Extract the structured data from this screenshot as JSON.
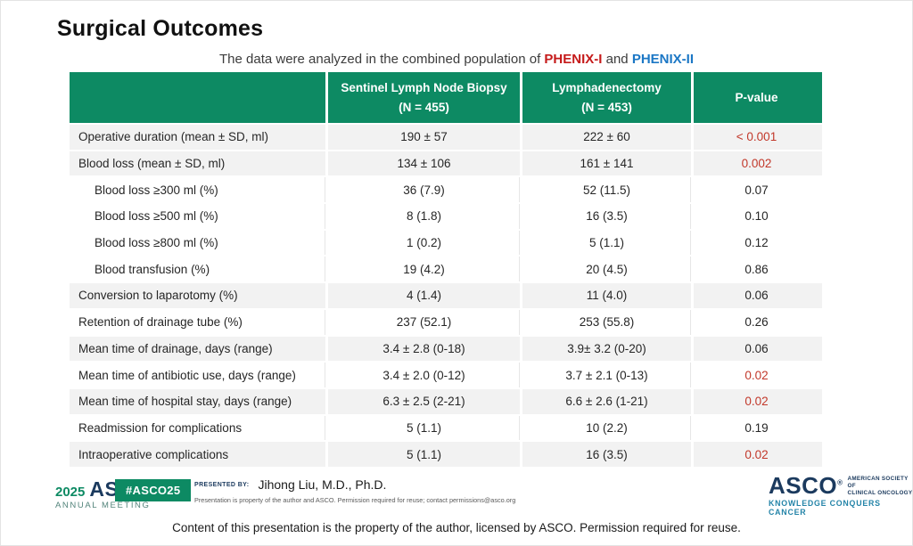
{
  "slide": {
    "title": "Surgical Outcomes",
    "subtitle": {
      "prefix": "The data were analyzed in the combined population of ",
      "study1": "PHENIX-I",
      "conjunction": " and ",
      "study2": "PHENIX-II"
    }
  },
  "table": {
    "header": {
      "col0": "",
      "col1_line1": "Sentinel Lymph Node Biopsy",
      "col1_line2": "(N = 455)",
      "col2_line1": "Lymphadenectomy",
      "col2_line2": "(N = 453)",
      "col3": "P-value"
    },
    "rows": [
      {
        "label": "Operative duration (mean ± SD, ml)",
        "slnb": "190 ± 57",
        "lymph": "222 ± 60",
        "p": "< 0.001",
        "p_red": true,
        "shaded": true,
        "indent": false
      },
      {
        "label": "Blood loss (mean ± SD, ml)",
        "slnb": "134 ± 106",
        "lymph": "161 ± 141",
        "p": "0.002",
        "p_red": true,
        "shaded": true,
        "indent": false
      },
      {
        "label": "Blood loss ≥300 ml (%)",
        "slnb": "36 (7.9)",
        "lymph": "52 (11.5)",
        "p": "0.07",
        "p_red": false,
        "shaded": false,
        "indent": true
      },
      {
        "label": "Blood loss ≥500 ml (%)",
        "slnb": "8 (1.8)",
        "lymph": "16 (3.5)",
        "p": "0.10",
        "p_red": false,
        "shaded": false,
        "indent": true
      },
      {
        "label": "Blood loss ≥800 ml (%)",
        "slnb": "1 (0.2)",
        "lymph": "5 (1.1)",
        "p": "0.12",
        "p_red": false,
        "shaded": false,
        "indent": true
      },
      {
        "label": "Blood transfusion (%)",
        "slnb": "19 (4.2)",
        "lymph": "20 (4.5)",
        "p": "0.86",
        "p_red": false,
        "shaded": false,
        "indent": true
      },
      {
        "label": "Conversion to laparotomy (%)",
        "slnb": "4 (1.4)",
        "lymph": "11 (4.0)",
        "p": "0.06",
        "p_red": false,
        "shaded": true,
        "indent": false
      },
      {
        "label": "Retention of drainage tube (%)",
        "slnb": "237 (52.1)",
        "lymph": "253 (55.8)",
        "p": "0.26",
        "p_red": false,
        "shaded": false,
        "indent": false
      },
      {
        "label": "Mean time of drainage, days (range)",
        "slnb": "3.4 ± 2.8 (0-18)",
        "lymph": "3.9± 3.2 (0-20)",
        "p": "0.06",
        "p_red": false,
        "shaded": true,
        "indent": false
      },
      {
        "label": "Mean time of antibiotic use, days (range)",
        "slnb": "3.4 ± 2.0 (0-12)",
        "lymph": "3.7 ± 2.1 (0-13)",
        "p": "0.02",
        "p_red": true,
        "shaded": false,
        "indent": false
      },
      {
        "label": "Mean time of hospital stay, days (range)",
        "slnb": "6.3 ± 2.5 (2-21)",
        "lymph": "6.6 ± 2.6 (1-21)",
        "p": "0.02",
        "p_red": true,
        "shaded": true,
        "indent": false
      },
      {
        "label": "Readmission for complications",
        "slnb": "5 (1.1)",
        "lymph": "10 (2.2)",
        "p": "0.19",
        "p_red": false,
        "shaded": false,
        "indent": false
      },
      {
        "label": "Intraoperative complications",
        "slnb": "5 (1.1)",
        "lymph": "16 (3.5)",
        "p": "0.02",
        "p_red": true,
        "shaded": true,
        "indent": false
      }
    ]
  },
  "footer": {
    "annual_meeting": {
      "year": "2025",
      "asco": "ASCO",
      "line2": "ANNUAL MEETING"
    },
    "hashtag_badge": "#ASCO25",
    "presented_by_label": "PRESENTED BY:",
    "presenter_name": "Jihong Liu, M.D., Ph.D.",
    "presenter_disclaimer": "Presentation is property of the author and ASCO. Permission required for reuse; contact permissions@asco.org",
    "asco_logo": {
      "word": "ASCO",
      "society_line1": "AMERICAN SOCIETY OF",
      "society_line2": "CLINICAL ONCOLOGY",
      "tagline": "KNOWLEDGE CONQUERS CANCER"
    },
    "bottom_disclaimer": "Content of this presentation is the property of the author, licensed by ASCO. Permission required for reuse."
  },
  "colors": {
    "header_green": "#0d8a63",
    "shaded_row": "#f2f2f2",
    "pvalue_red": "#c2382a",
    "study1_red": "#c51a1a",
    "study2_blue": "#1b77c5",
    "asco_navy": "#1b3a5e",
    "tagline_teal": "#2484a8"
  }
}
